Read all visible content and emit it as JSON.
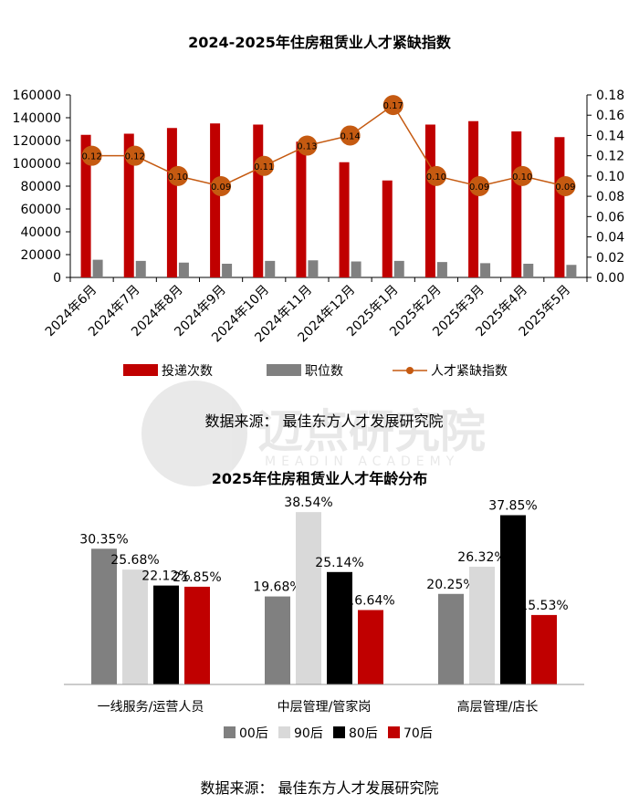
{
  "chart_data": [
    {
      "type": "bar",
      "title": "2024-2025年住房租赁业人才紧缺指数",
      "categories": [
        "2024年6月",
        "2024年7月",
        "2024年8月",
        "2024年9月",
        "2024年10月",
        "2024年11月",
        "2024年12月",
        "2025年1月",
        "2025年2月",
        "2025年3月",
        "2025年4月",
        "2025年5月"
      ],
      "series": [
        {
          "name": "投递次数",
          "kind": "bar",
          "axis": "left",
          "color": "#c00000",
          "values": [
            125000,
            126000,
            131000,
            135000,
            134000,
            119000,
            101000,
            85000,
            134000,
            137000,
            128000,
            123000
          ]
        },
        {
          "name": "职位数",
          "kind": "bar",
          "axis": "left",
          "color": "#808080",
          "values": [
            15500,
            14500,
            13000,
            12000,
            14500,
            15000,
            14000,
            14500,
            13500,
            12500,
            12000,
            11000
          ]
        },
        {
          "name": "人才紧缺指数",
          "kind": "line",
          "axis": "right",
          "color": "#c55a11",
          "values": [
            0.12,
            0.12,
            0.1,
            0.09,
            0.11,
            0.13,
            0.14,
            0.17,
            0.1,
            0.09,
            0.1,
            0.09
          ],
          "labels": [
            "0.12",
            "0.12",
            "0.10",
            "0.09",
            "0.11",
            "0.13",
            "0.14",
            "0.17",
            "0.10",
            "0.09",
            "0.10",
            "0.09"
          ]
        }
      ],
      "ylim_left": [
        0,
        160000
      ],
      "yticks_left": [
        "0",
        "20000",
        "40000",
        "60000",
        "80000",
        "100000",
        "120000",
        "140000",
        "160000"
      ],
      "ylim_right": [
        0,
        0.18
      ],
      "yticks_right": [
        "0.00",
        "0.02",
        "0.04",
        "0.06",
        "0.08",
        "0.10",
        "0.12",
        "0.14",
        "0.16",
        "0.18"
      ],
      "legend": [
        "投递次数",
        "职位数",
        "人才紧缺指数"
      ],
      "grid": false,
      "legend_position": "bottom",
      "source": "数据来源： 最佳东方人才发展研究院"
    },
    {
      "type": "bar",
      "title": "2025年住房租赁业人才年龄分布",
      "categories": [
        "一线服务/运营人员",
        "中层管理/管家岗",
        "高层管理/店长"
      ],
      "series": [
        {
          "name": "00后",
          "color": "#808080",
          "values": [
            30.35,
            19.68,
            20.25
          ],
          "labels": [
            "30.35%",
            "19.68%",
            "20.25%"
          ]
        },
        {
          "name": "90后",
          "color": "#d9d9d9",
          "values": [
            25.68,
            38.54,
            26.32
          ],
          "labels": [
            "25.68%",
            "38.54%",
            "26.32%"
          ]
        },
        {
          "name": "80后",
          "color": "#000000",
          "values": [
            22.12,
            25.14,
            37.85
          ],
          "labels": [
            "22.12%",
            "25.14%",
            "37.85%"
          ]
        },
        {
          "name": "70后",
          "color": "#c00000",
          "values": [
            21.85,
            16.64,
            15.53
          ],
          "labels": [
            "21.85%",
            "16.64%",
            "15.53%"
          ]
        }
      ],
      "ylim": [
        0,
        40
      ],
      "legend": [
        "00后",
        "90后",
        "80后",
        "70后"
      ],
      "grid": false,
      "legend_position": "bottom",
      "source": "数据来源： 最佳东方人才发展研究院"
    }
  ],
  "watermark": {
    "text": "迈点研究院",
    "subtext": "MEADIN ACADEMY"
  }
}
